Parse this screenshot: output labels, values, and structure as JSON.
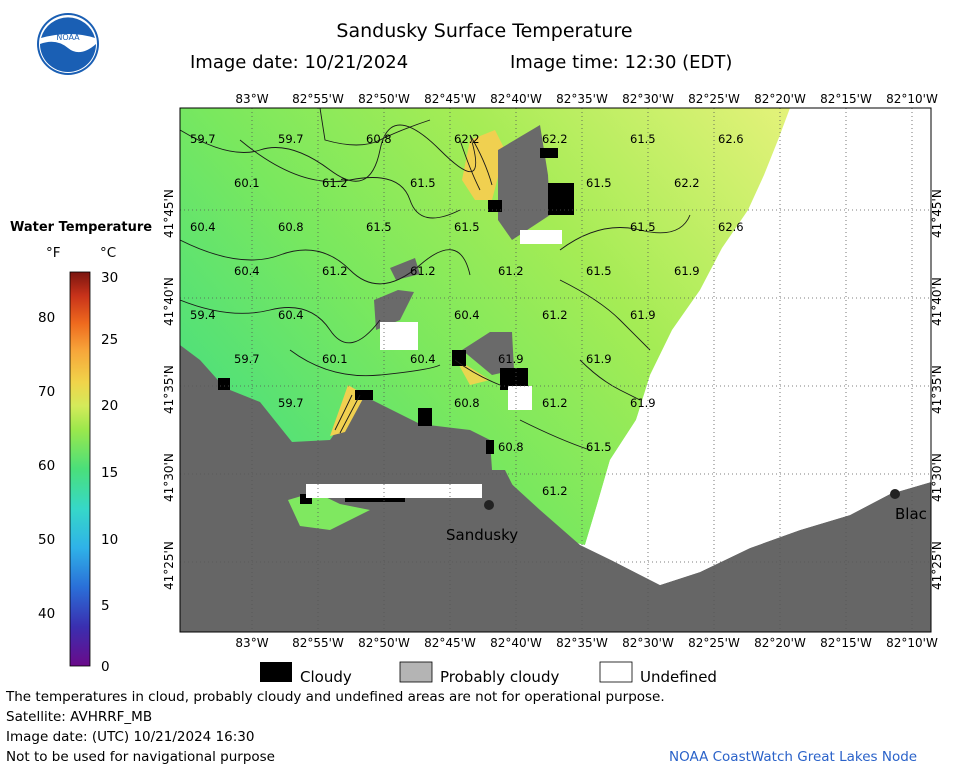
{
  "header": {
    "title": "Sandusky Surface Temperature",
    "image_date": "Image date: 10/21/2024",
    "image_time": "Image time: 12:30 (EDT)",
    "logo_text": "NOAA"
  },
  "colorbar": {
    "title": "Water Temperature",
    "unit_f": "°F",
    "unit_c": "°C",
    "f_ticks": [
      "80",
      "70",
      "60",
      "50",
      "40"
    ],
    "c_ticks": [
      "30",
      "25",
      "20",
      "15",
      "10",
      "5",
      "0"
    ],
    "colors": [
      "#6a0a8a",
      "#3a2fb0",
      "#2a6fd8",
      "#2fb2e8",
      "#36d8c8",
      "#4adf7a",
      "#8de84a",
      "#d4ea5a",
      "#f0d44a",
      "#f7a63a",
      "#ee6a1e",
      "#c8321a",
      "#7a1510"
    ]
  },
  "map": {
    "lon_labels": [
      "83°W",
      "82°55'W",
      "82°50'W",
      "82°45'W",
      "82°40'W",
      "82°35'W",
      "82°30'W",
      "82°25'W",
      "82°20'W",
      "82°15'W",
      "82°10'W"
    ],
    "lat_labels": [
      "41°45'N",
      "41°40'N",
      "41°35'N",
      "41°30'N",
      "41°25'N"
    ],
    "city_labels": [
      "Sandusky",
      "Blac"
    ],
    "temps": [
      "59.7",
      "59.7",
      "60.8",
      "62.2",
      "62.2",
      "61.5",
      "62.6",
      "60.1",
      "61.2",
      "61.5",
      "61.5",
      "62.2",
      "60.4",
      "60.8",
      "61.5",
      "61.5",
      "61.5",
      "62.6",
      "60.4",
      "61.2",
      "61.2",
      "61.2",
      "61.5",
      "61.9",
      "59.4",
      "60.4",
      "60.4",
      "61.2",
      "61.9",
      "59.7",
      "60.1",
      "60.4",
      "61.9",
      "61.9",
      "59.7",
      "60.8",
      "61.2",
      "61.9",
      "60.8",
      "61.5",
      "61.2"
    ],
    "colors": {
      "land": "#666666",
      "water_cool": "#5ee36b",
      "water_mid": "#a2ec55",
      "water_warm": "#d6f07a",
      "cloud": "#000000",
      "probably_cloudy": "#b4b4b4"
    }
  },
  "legend": {
    "cloudy": "Cloudy",
    "probably_cloudy": "Probably cloudy",
    "undefined": "Undefined"
  },
  "footer": {
    "disclaimer": "The temperatures in cloud, probably cloudy and undefined areas are not for operational purpose.",
    "satellite": "Satellite: AVHRRF_MB",
    "utc_date": "Image date: (UTC) 10/21/2024  16:30",
    "nav_warning": "Not to be used for navigational purpose",
    "credit": "NOAA CoastWatch Great Lakes Node"
  }
}
